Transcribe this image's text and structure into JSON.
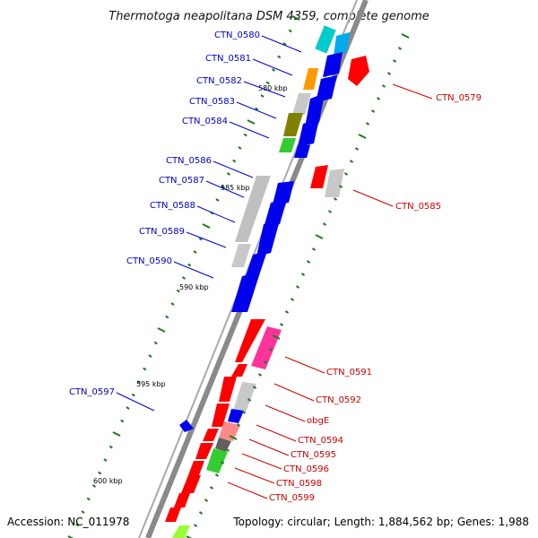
{
  "title": "Thermotoga neapolitana DSM 4359, complete genome",
  "accession": "Accession: NC_011978",
  "summary": "Topology: circular; Length: 1,884,562 bp; Genes: 1,988",
  "colors": {
    "forward_label": "#0000cc",
    "reverse_label": "#cc0000",
    "tick": "#1f7a1f",
    "backbone": "#888888"
  },
  "kbp_marks": [
    "580 kbp",
    "585 kbp",
    "590 kbp",
    "595 kbp",
    "600 kbp"
  ],
  "forward_genes": [
    {
      "label": "CTN_0580",
      "color": "#00cccc"
    },
    {
      "label": "CTN_0581",
      "color": "#ff9900"
    },
    {
      "label": "CTN_0582",
      "color": "#c8c8c8"
    },
    {
      "label": "CTN_0583",
      "color": "#808000"
    },
    {
      "label": "CTN_0584",
      "color": "#33cc33"
    },
    {
      "label": "CTN_0586",
      "color": "#0000ee"
    },
    {
      "label": "CTN_0587",
      "color": "#c8c8c8"
    },
    {
      "label": "CTN_0588",
      "color": "#0000ee"
    },
    {
      "label": "CTN_0589",
      "color": "#c8c8c8"
    },
    {
      "label": "CTN_0590",
      "color": "#0000ee"
    },
    {
      "label": "CTN_0597",
      "color": "#0000ee"
    }
  ],
  "reverse_genes": [
    {
      "label": "CTN_0579",
      "color": "#ff0000"
    },
    {
      "label": "CTN_0585",
      "color": "#ff0000"
    },
    {
      "label": "CTN_0591",
      "color": "#ff3399"
    },
    {
      "label": "CTN_0592",
      "color": "#c8c8c8"
    },
    {
      "label": "obgE",
      "color": "#0000ee"
    },
    {
      "label": "CTN_0594",
      "color": "#ff8888"
    },
    {
      "label": "CTN_0595",
      "color": "#606060"
    },
    {
      "label": "CTN_0596",
      "color": "#33cc33"
    },
    {
      "label": "CTN_0598",
      "color": "#99ff33"
    },
    {
      "label": "CTN_0599",
      "color": "#ff0000"
    }
  ]
}
